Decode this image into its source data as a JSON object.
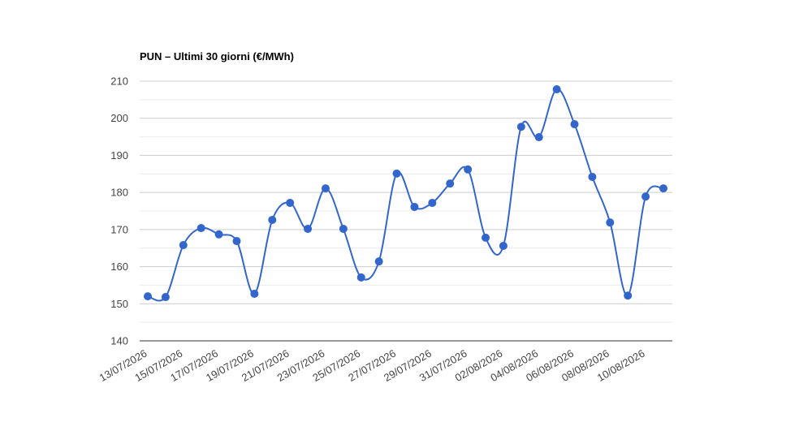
{
  "chart_data": {
    "type": "line",
    "title": "PUN – Ultimi 30 giorni (€/MWh)",
    "categories": [
      "13/07/2026",
      null,
      "15/07/2026",
      null,
      "17/07/2026",
      null,
      "19/07/2026",
      null,
      "21/07/2026",
      null,
      "23/07/2026",
      null,
      "25/07/2026",
      null,
      "27/07/2026",
      null,
      "29/07/2026",
      null,
      "31/07/2026",
      null,
      "02/08/2026",
      null,
      "04/08/2026",
      null,
      "06/08/2026",
      null,
      "08/08/2026",
      null,
      "10/08/2026",
      null
    ],
    "series": [
      {
        "name": "PUN",
        "color": "#3366cc",
        "values": [
          152.0,
          151.8,
          165.8,
          170.4,
          168.7,
          166.9,
          152.7,
          172.6,
          177.2,
          170.2,
          181.1,
          170.2,
          157.1,
          161.4,
          185.1,
          176.1,
          177.2,
          182.4,
          186.2,
          167.8,
          165.6,
          197.7,
          194.9,
          207.8,
          198.4,
          184.2,
          171.9,
          152.2,
          178.9,
          181.1
        ]
      }
    ],
    "ylim": [
      140,
      210
    ],
    "yticks": [
      140,
      150,
      160,
      170,
      180,
      190,
      200,
      210
    ],
    "minor_yticks": [
      145,
      155,
      165,
      175,
      185,
      195,
      205
    ],
    "grid": true,
    "smooth": true
  }
}
